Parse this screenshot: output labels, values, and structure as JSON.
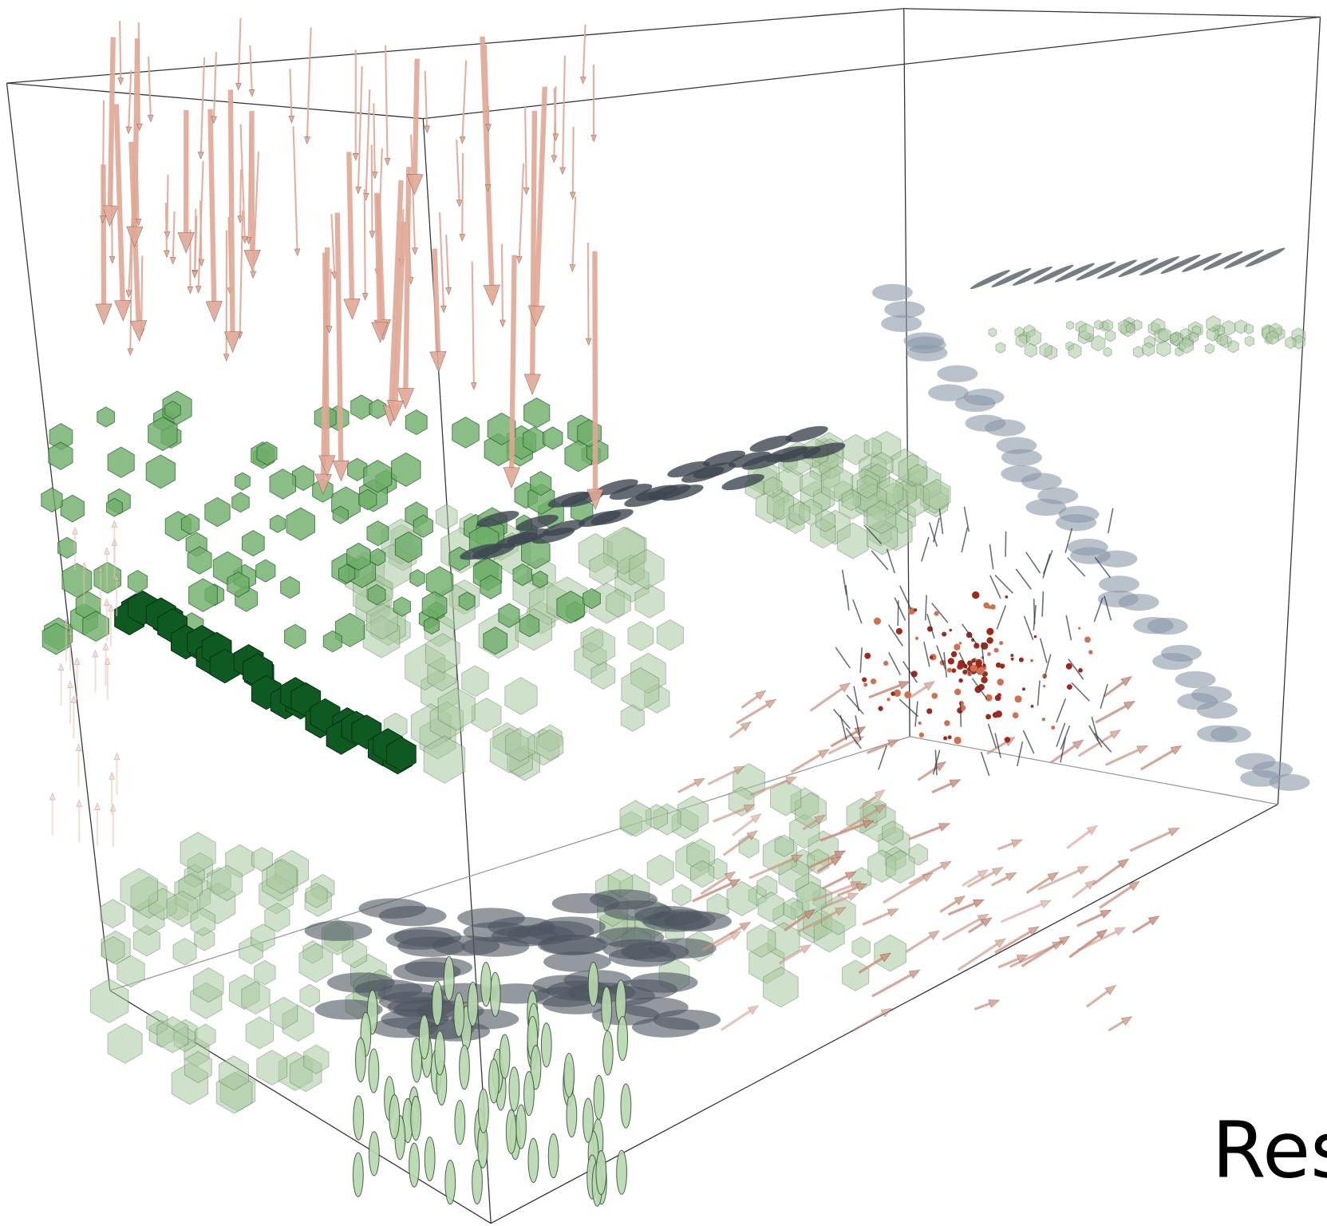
{
  "caption": {
    "text": "Res"
  }
}
